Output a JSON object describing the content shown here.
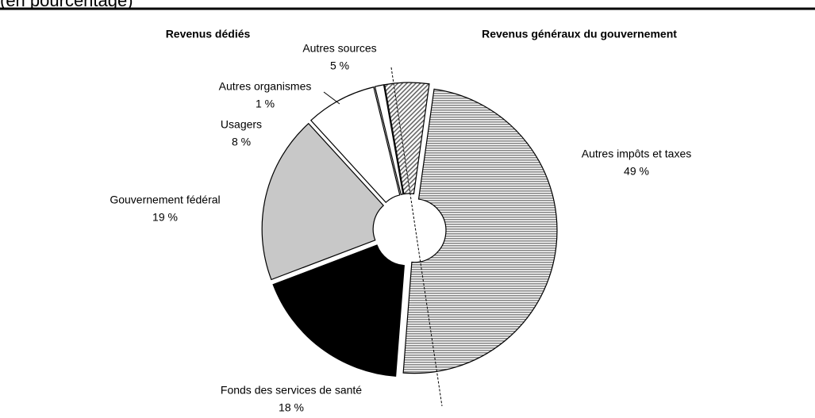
{
  "chart_data": {
    "type": "pie",
    "subtitle": "(en pourcentage)",
    "group_labels": [
      "Revenus dédiés",
      "Revenus généraux du gouvernement"
    ],
    "categories": [
      "Autres impôts et taxes",
      "Fonds des services de santé",
      "Gouvernement fédéral",
      "Usagers",
      "Autres organismes",
      "Autres sources"
    ],
    "values": [
      49,
      18,
      19,
      8,
      1,
      5
    ],
    "value_labels": [
      "49 %",
      "18 %",
      "19 %",
      "8 %",
      "1 %",
      "5 %"
    ],
    "colors": [
      "#999999",
      "#000000",
      "#c8c8c8",
      "#ffffff",
      "#ffffff",
      "#bbbbbb"
    ],
    "patterns": [
      "horizontal",
      null,
      null,
      null,
      null,
      "diagonal"
    ]
  }
}
